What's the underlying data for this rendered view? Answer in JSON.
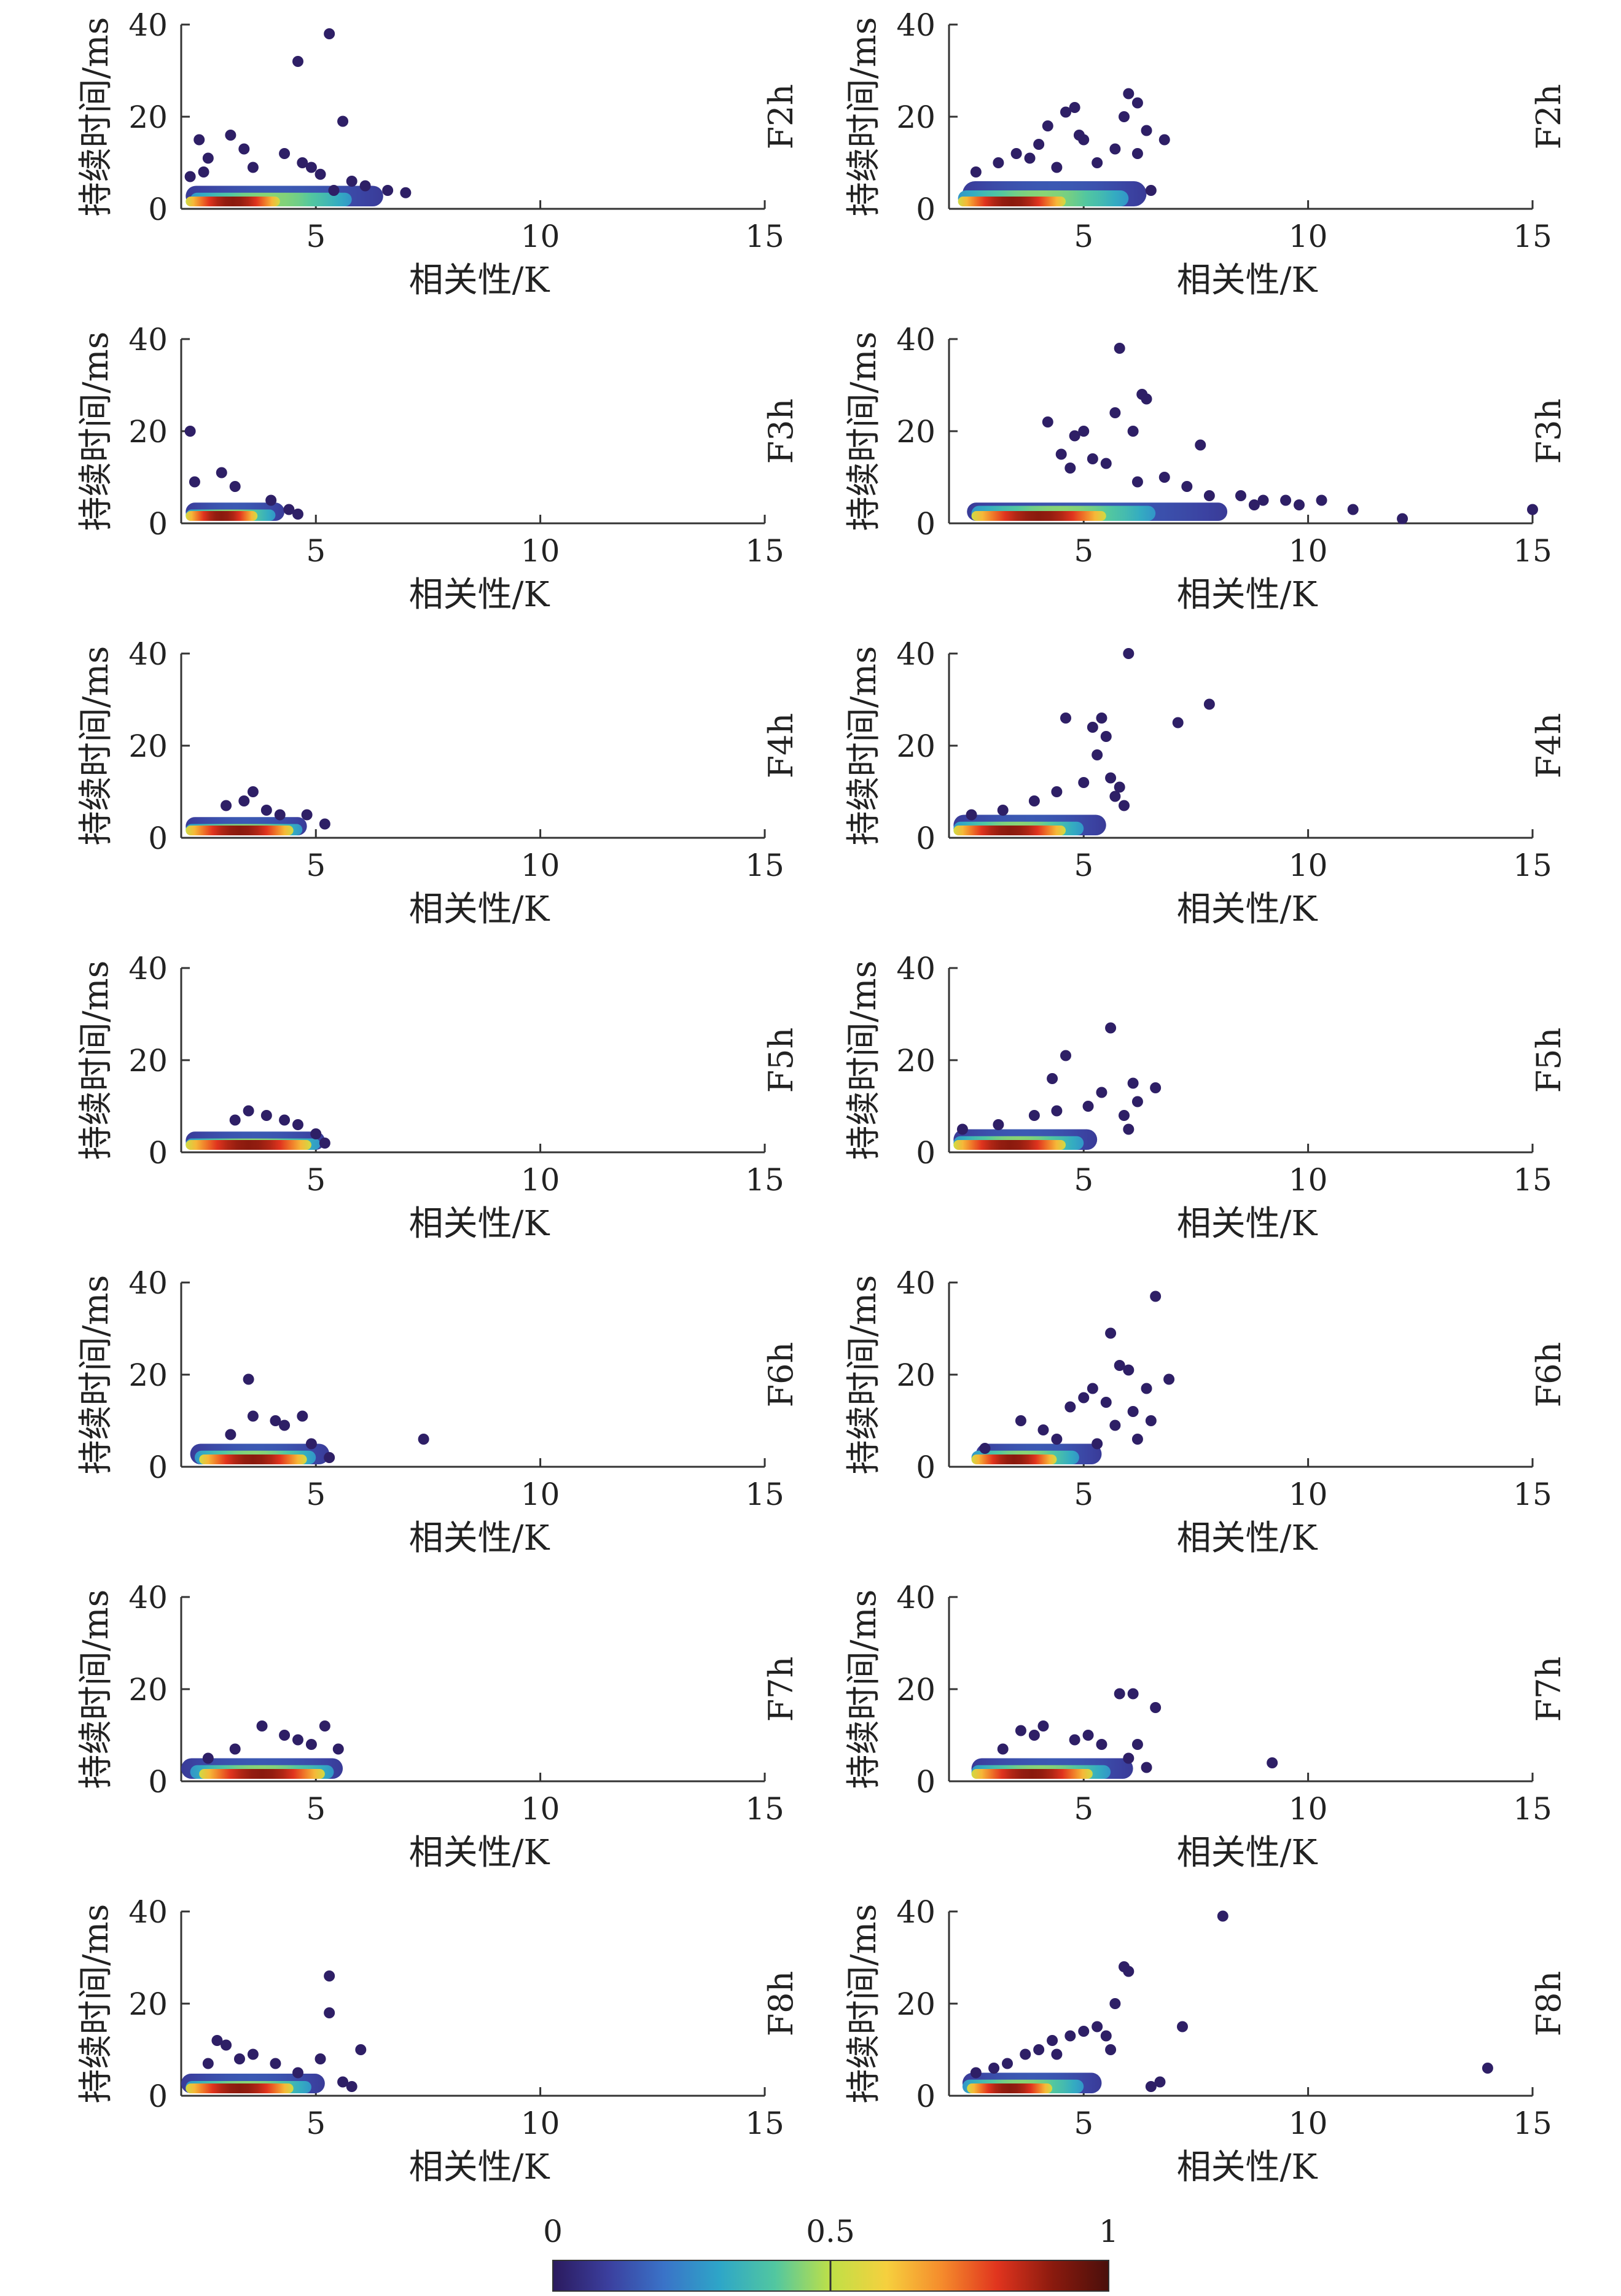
{
  "colorbar": {
    "ticks": [
      "0",
      "0.5",
      "1"
    ],
    "stops": [
      "#2b1a5e",
      "#3b3f9e",
      "#3a73c8",
      "#2ea6c8",
      "#52c7a0",
      "#bfe047",
      "#f6d03e",
      "#f58b2c",
      "#e0341e",
      "#8a1a0e",
      "#4a0f0b"
    ]
  },
  "chart_data": [
    {
      "type": "scatter",
      "panel": "F2h-left",
      "side_label": "F2h",
      "xlabel": "相关性/K",
      "ylabel": "持续时间/ms",
      "xlim": [
        2,
        15
      ],
      "ylim": [
        0,
        40
      ],
      "xticks": [
        "5",
        "10",
        "15"
      ],
      "yticks": [
        "0",
        "20",
        "40"
      ],
      "core": [
        [
          2.1,
          4.2,
          1.6,
          0.9
        ],
        [
          2.2,
          5.8,
          3.5,
          0.45
        ],
        [
          2.1,
          6.5,
          5,
          0.15
        ]
      ],
      "points": [
        [
          5.3,
          38
        ],
        [
          4.6,
          32
        ],
        [
          5.6,
          19
        ],
        [
          2.4,
          15
        ],
        [
          3.1,
          16
        ],
        [
          2.6,
          11
        ],
        [
          3.4,
          13
        ],
        [
          4.3,
          12
        ],
        [
          2.5,
          8
        ],
        [
          3.6,
          9
        ],
        [
          4.9,
          9
        ],
        [
          5.1,
          7.5
        ],
        [
          5.8,
          6
        ],
        [
          6.1,
          5
        ],
        [
          6.6,
          4
        ],
        [
          7,
          3.5
        ],
        [
          5.4,
          4
        ],
        [
          2.2,
          7
        ],
        [
          4.7,
          10
        ]
      ]
    },
    {
      "type": "scatter",
      "panel": "F2h-right",
      "side_label": "F2h",
      "xlabel": "相关性/K",
      "ylabel": "持续时间/ms",
      "xlim": [
        2,
        15
      ],
      "ylim": [
        0,
        40
      ],
      "xticks": [
        "5",
        "10",
        "15"
      ],
      "yticks": [
        "0",
        "20",
        "40"
      ],
      "core": [
        [
          2.2,
          4.6,
          1.6,
          0.9
        ],
        [
          2.2,
          6,
          4,
          0.45
        ],
        [
          2.3,
          6.4,
          6,
          0.15
        ]
      ],
      "points": [
        [
          6,
          25
        ],
        [
          6.2,
          23
        ],
        [
          4.8,
          22
        ],
        [
          4.6,
          21
        ],
        [
          5.9,
          20
        ],
        [
          4.2,
          18
        ],
        [
          6.4,
          17
        ],
        [
          6.8,
          15
        ],
        [
          5,
          15
        ],
        [
          4,
          14
        ],
        [
          3.5,
          12
        ],
        [
          5.7,
          13
        ],
        [
          6.2,
          12
        ],
        [
          3.1,
          10
        ],
        [
          2.6,
          8
        ],
        [
          4.4,
          9
        ],
        [
          5.3,
          10
        ],
        [
          6.5,
          4
        ],
        [
          4.9,
          16
        ],
        [
          3.8,
          11
        ]
      ]
    },
    {
      "type": "scatter",
      "panel": "F3h-left",
      "side_label": "F3h",
      "xlabel": "相关性/K",
      "ylabel": "持续时间/ms",
      "xlim": [
        2,
        15
      ],
      "ylim": [
        0,
        40
      ],
      "xticks": [
        "5",
        "10",
        "15"
      ],
      "yticks": [
        "0",
        "20",
        "40"
      ],
      "core": [
        [
          2.1,
          3.7,
          1.5,
          0.9
        ],
        [
          2.1,
          4.1,
          3,
          0.45
        ],
        [
          2.1,
          4.3,
          4.5,
          0.15
        ]
      ],
      "points": [
        [
          2.2,
          20
        ],
        [
          2.9,
          11
        ],
        [
          2.3,
          9
        ],
        [
          3.2,
          8
        ],
        [
          4,
          5
        ],
        [
          4.4,
          3
        ],
        [
          4.6,
          2
        ]
      ]
    },
    {
      "type": "scatter",
      "panel": "F3h-right",
      "side_label": "F3h",
      "xlabel": "相关性/K",
      "ylabel": "持续时间/ms",
      "xlim": [
        2,
        15
      ],
      "ylim": [
        0,
        40
      ],
      "xticks": [
        "5",
        "10",
        "15"
      ],
      "yticks": [
        "0",
        "20",
        "40"
      ],
      "core": [
        [
          2.5,
          5.5,
          1.6,
          0.9
        ],
        [
          2.5,
          6.6,
          3.8,
          0.45
        ],
        [
          2.4,
          8.2,
          4.5,
          0.15
        ]
      ],
      "points": [
        [
          5.8,
          38
        ],
        [
          6.3,
          28
        ],
        [
          6.4,
          27
        ],
        [
          5.7,
          24
        ],
        [
          4.2,
          22
        ],
        [
          5,
          20
        ],
        [
          4.8,
          19
        ],
        [
          6.1,
          20
        ],
        [
          7.6,
          17
        ],
        [
          4.5,
          15
        ],
        [
          4.7,
          12
        ],
        [
          5.5,
          13
        ],
        [
          6.8,
          10
        ],
        [
          6.2,
          9
        ],
        [
          7.3,
          8
        ],
        [
          8.5,
          6
        ],
        [
          9,
          5
        ],
        [
          9.5,
          5
        ],
        [
          9.8,
          4
        ],
        [
          10.3,
          5
        ],
        [
          11,
          3
        ],
        [
          12.1,
          1
        ],
        [
          15,
          3
        ],
        [
          7.8,
          6
        ],
        [
          8.8,
          4
        ],
        [
          5.2,
          14
        ]
      ]
    },
    {
      "type": "scatter",
      "panel": "F4h-left",
      "side_label": "F4h",
      "xlabel": "相关性/K",
      "ylabel": "持续时间/ms",
      "xlim": [
        2,
        15
      ],
      "ylim": [
        0,
        40
      ],
      "xticks": [
        "5",
        "10",
        "15"
      ],
      "yticks": [
        "0",
        "20",
        "40"
      ],
      "core": [
        [
          2.1,
          4.5,
          1.6,
          0.9
        ],
        [
          2.1,
          4.7,
          3,
          0.45
        ],
        [
          2.1,
          4.8,
          4.5,
          0.15
        ]
      ],
      "points": [
        [
          3.6,
          10
        ],
        [
          3.4,
          8
        ],
        [
          4.2,
          5
        ],
        [
          4.8,
          5
        ],
        [
          5.2,
          3
        ],
        [
          3,
          7
        ],
        [
          3.9,
          6
        ]
      ]
    },
    {
      "type": "scatter",
      "panel": "F4h-right",
      "side_label": "F4h",
      "xlabel": "相关性/K",
      "ylabel": "持续时间/ms",
      "xlim": [
        2,
        15
      ],
      "ylim": [
        0,
        40
      ],
      "xticks": [
        "5",
        "10",
        "15"
      ],
      "yticks": [
        "0",
        "20",
        "40"
      ],
      "core": [
        [
          2.1,
          4.6,
          1.6,
          0.9
        ],
        [
          2.1,
          5,
          3.5,
          0.45
        ],
        [
          2.1,
          5.5,
          5,
          0.15
        ]
      ],
      "points": [
        [
          6,
          40
        ],
        [
          7.8,
          29
        ],
        [
          7.1,
          25
        ],
        [
          4.6,
          26
        ],
        [
          5.4,
          26
        ],
        [
          5.2,
          24
        ],
        [
          5.5,
          22
        ],
        [
          5.3,
          18
        ],
        [
          5.6,
          13
        ],
        [
          5.8,
          11
        ],
        [
          5.9,
          7
        ],
        [
          5,
          12
        ],
        [
          3.9,
          8
        ],
        [
          4.4,
          10
        ],
        [
          3.2,
          6
        ],
        [
          2.5,
          5
        ],
        [
          5.7,
          9
        ]
      ]
    },
    {
      "type": "scatter",
      "panel": "F5h-left",
      "side_label": "F5h",
      "xlabel": "相关性/K",
      "ylabel": "持续时间/ms",
      "xlim": [
        2,
        15
      ],
      "ylim": [
        0,
        40
      ],
      "xticks": [
        "5",
        "10",
        "15"
      ],
      "yticks": [
        "0",
        "20",
        "40"
      ],
      "core": [
        [
          2.1,
          4.9,
          1.6,
          0.9
        ],
        [
          2.1,
          5.1,
          3,
          0.45
        ],
        [
          2.1,
          5.2,
          4.5,
          0.15
        ]
      ],
      "points": [
        [
          3.5,
          9
        ],
        [
          3.2,
          7
        ],
        [
          4.3,
          7
        ],
        [
          4.6,
          6
        ],
        [
          5,
          4
        ],
        [
          5.2,
          2
        ],
        [
          3.9,
          8
        ]
      ]
    },
    {
      "type": "scatter",
      "panel": "F5h-right",
      "side_label": "F5h",
      "xlabel": "相关性/K",
      "ylabel": "持续时间/ms",
      "xlim": [
        2,
        15
      ],
      "ylim": [
        0,
        40
      ],
      "xticks": [
        "5",
        "10",
        "15"
      ],
      "yticks": [
        "0",
        "20",
        "40"
      ],
      "core": [
        [
          2.1,
          4.6,
          1.6,
          0.9
        ],
        [
          2.1,
          5,
          3.5,
          0.45
        ],
        [
          2.1,
          5.3,
          5,
          0.15
        ]
      ],
      "points": [
        [
          5.6,
          27
        ],
        [
          4.6,
          21
        ],
        [
          4.3,
          16
        ],
        [
          5.4,
          13
        ],
        [
          6.6,
          14
        ],
        [
          6.1,
          15
        ],
        [
          6.2,
          11
        ],
        [
          5.9,
          8
        ],
        [
          6,
          5
        ],
        [
          5.1,
          10
        ],
        [
          3.9,
          8
        ],
        [
          4.4,
          9
        ],
        [
          2.3,
          5
        ],
        [
          3.1,
          6
        ]
      ]
    },
    {
      "type": "scatter",
      "panel": "F6h-left",
      "side_label": "F6h",
      "xlabel": "相关性/K",
      "ylabel": "持续时间/ms",
      "xlim": [
        2,
        15
      ],
      "ylim": [
        0,
        40
      ],
      "xticks": [
        "5",
        "10",
        "15"
      ],
      "yticks": [
        "0",
        "20",
        "40"
      ],
      "core": [
        [
          2.4,
          4.8,
          1.6,
          0.9
        ],
        [
          2.3,
          5,
          3.5,
          0.45
        ],
        [
          2.2,
          5.3,
          5,
          0.15
        ]
      ],
      "points": [
        [
          3.5,
          19
        ],
        [
          3.6,
          11
        ],
        [
          4.1,
          10
        ],
        [
          4.7,
          11
        ],
        [
          4.3,
          9
        ],
        [
          7.4,
          6
        ],
        [
          5.3,
          2
        ],
        [
          3.1,
          7
        ],
        [
          4.9,
          5
        ]
      ]
    },
    {
      "type": "scatter",
      "panel": "F6h-right",
      "side_label": "F6h",
      "xlabel": "相关性/K",
      "ylabel": "持续时间/ms",
      "xlim": [
        2,
        15
      ],
      "ylim": [
        0,
        40
      ],
      "xticks": [
        "5",
        "10",
        "15"
      ],
      "yticks": [
        "0",
        "20",
        "40"
      ],
      "core": [
        [
          2.5,
          4.4,
          1.6,
          0.9
        ],
        [
          2.5,
          4.9,
          3.5,
          0.45
        ],
        [
          2.6,
          5.4,
          5,
          0.15
        ]
      ],
      "points": [
        [
          6.6,
          37
        ],
        [
          5.6,
          29
        ],
        [
          5.8,
          22
        ],
        [
          6,
          21
        ],
        [
          6.9,
          19
        ],
        [
          5.2,
          17
        ],
        [
          5,
          15
        ],
        [
          6.4,
          17
        ],
        [
          4.7,
          13
        ],
        [
          5.5,
          14
        ],
        [
          6.1,
          12
        ],
        [
          5.7,
          9
        ],
        [
          6.5,
          10
        ],
        [
          6.2,
          6
        ],
        [
          5.3,
          5
        ],
        [
          4.1,
          8
        ],
        [
          3.6,
          10
        ],
        [
          2.8,
          4
        ],
        [
          4.4,
          6
        ]
      ]
    },
    {
      "type": "scatter",
      "panel": "F7h-left",
      "side_label": "F7h",
      "xlabel": "相关性/K",
      "ylabel": "持续时间/ms",
      "xlim": [
        2,
        15
      ],
      "ylim": [
        0,
        40
      ],
      "xticks": [
        "5",
        "10",
        "15"
      ],
      "yticks": [
        "0",
        "20",
        "40"
      ],
      "core": [
        [
          2.4,
          5.2,
          1.6,
          0.9
        ],
        [
          2.2,
          5.4,
          3.5,
          0.45
        ],
        [
          2,
          5.6,
          5,
          0.15
        ]
      ],
      "points": [
        [
          3.8,
          12
        ],
        [
          5.2,
          12
        ],
        [
          4.3,
          10
        ],
        [
          4.6,
          9
        ],
        [
          4.9,
          8
        ],
        [
          5.5,
          7
        ],
        [
          3.2,
          7
        ],
        [
          2.6,
          5
        ]
      ]
    },
    {
      "type": "scatter",
      "panel": "F7h-right",
      "side_label": "F7h",
      "xlabel": "相关性/K",
      "ylabel": "持续时间/ms",
      "xlim": [
        2,
        15
      ],
      "ylim": [
        0,
        40
      ],
      "xticks": [
        "5",
        "10",
        "15"
      ],
      "yticks": [
        "0",
        "20",
        "40"
      ],
      "core": [
        [
          2.5,
          5.2,
          1.6,
          0.9
        ],
        [
          2.5,
          5.6,
          3.5,
          0.45
        ],
        [
          2.5,
          6.1,
          5,
          0.15
        ]
      ],
      "points": [
        [
          5.8,
          19
        ],
        [
          6.1,
          19
        ],
        [
          6.6,
          16
        ],
        [
          4.1,
          12
        ],
        [
          3.6,
          11
        ],
        [
          3.9,
          10
        ],
        [
          4.8,
          9
        ],
        [
          5.4,
          8
        ],
        [
          6.2,
          8
        ],
        [
          6,
          5
        ],
        [
          6.4,
          3
        ],
        [
          9.2,
          4
        ],
        [
          5.1,
          10
        ],
        [
          3.2,
          7
        ]
      ]
    },
    {
      "type": "scatter",
      "panel": "F8h-left",
      "side_label": "F8h",
      "xlabel": "相关性/K",
      "ylabel": "持续时间/ms",
      "xlim": [
        2,
        15
      ],
      "ylim": [
        0,
        40
      ],
      "xticks": [
        "5",
        "10",
        "15"
      ],
      "yticks": [
        "0",
        "20",
        "40"
      ],
      "core": [
        [
          2.1,
          4.5,
          1.6,
          0.9
        ],
        [
          2.1,
          4.9,
          3.2,
          0.45
        ],
        [
          2,
          5.2,
          4.8,
          0.15
        ]
      ],
      "points": [
        [
          5.3,
          26
        ],
        [
          5.3,
          18
        ],
        [
          2.8,
          12
        ],
        [
          3,
          11
        ],
        [
          3.6,
          9
        ],
        [
          2.6,
          7
        ],
        [
          4.1,
          7
        ],
        [
          5.1,
          8
        ],
        [
          6,
          10
        ],
        [
          5.6,
          3
        ],
        [
          5.8,
          2
        ],
        [
          4.6,
          5
        ],
        [
          3.3,
          8
        ]
      ]
    },
    {
      "type": "scatter",
      "panel": "F8h-right",
      "side_label": "F8h",
      "xlabel": "相关性/K",
      "ylabel": "持续时间/ms",
      "xlim": [
        2,
        15
      ],
      "ylim": [
        0,
        40
      ],
      "xticks": [
        "5",
        "10",
        "15"
      ],
      "yticks": [
        "0",
        "20",
        "40"
      ],
      "core": [
        [
          2.4,
          4.3,
          1.6,
          0.9
        ],
        [
          2.3,
          5,
          3.5,
          0.45
        ],
        [
          2.3,
          5.4,
          5,
          0.15
        ]
      ],
      "points": [
        [
          8.1,
          39
        ],
        [
          5.9,
          28
        ],
        [
          6,
          27
        ],
        [
          5.7,
          20
        ],
        [
          7.2,
          15
        ],
        [
          5,
          14
        ],
        [
          4.7,
          13
        ],
        [
          4.3,
          12
        ],
        [
          5.3,
          15
        ],
        [
          5.5,
          13
        ],
        [
          4,
          10
        ],
        [
          3.7,
          9
        ],
        [
          3.3,
          7
        ],
        [
          4.4,
          9
        ],
        [
          5.6,
          10
        ],
        [
          6.7,
          3
        ],
        [
          6.5,
          2
        ],
        [
          14,
          6
        ],
        [
          2.6,
          5
        ],
        [
          3,
          6
        ]
      ]
    }
  ]
}
